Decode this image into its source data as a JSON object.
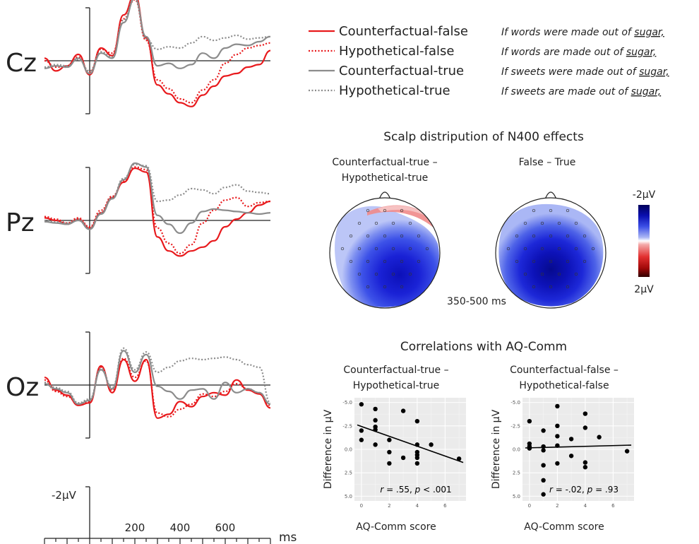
{
  "legend": [
    {
      "name": "Counterfactual-false",
      "example": "If words were made out of ",
      "keyword": "sugar,",
      "color": "#e8191c",
      "dash": "solid"
    },
    {
      "name": "Hypothetical-false",
      "example": "If words are made out of ",
      "keyword": "sugar,",
      "color": "#e8191c",
      "dash": "dotted"
    },
    {
      "name": "Counterfactual-true",
      "example": "If sweets were made out of ",
      "keyword": "sugar,",
      "color": "#8c8c8c",
      "dash": "solid"
    },
    {
      "name": "Hypothetical-true",
      "example": "If sweets are made out of ",
      "keyword": "sugar,",
      "color": "#8c8c8c",
      "dash": "dotted"
    }
  ],
  "erp": {
    "channels": [
      "Cz",
      "Pz",
      "Oz"
    ],
    "scale_label": "-2µV",
    "time_unit": "ms",
    "time_ticks": [
      "200",
      "400",
      "600"
    ]
  },
  "scalp": {
    "title": "Scalp distripution of N400 effects",
    "maps": [
      {
        "label_line1": "Counterfactual-true –",
        "label_line2": "Hypothetical-true"
      },
      {
        "label_line1": "False – True",
        "label_line2": ""
      }
    ],
    "time_window": "350-500 ms",
    "colorbar_top": "-2µV",
    "colorbar_bottom": "2µV",
    "colors": {
      "negative": "#1a1fd0",
      "positive": "#d81d1d"
    }
  },
  "correlations": {
    "title": "Correlations with AQ-Comm",
    "ylabel": "Difference in µV",
    "xlabel": "AQ-Comm score",
    "panels": [
      {
        "title_line1": "Counterfactual-true –",
        "title_line2": "Hypothetical-true",
        "stat_r": "r",
        "stat_rval": " = .55, ",
        "stat_p": "p",
        "stat_pval": " < .001"
      },
      {
        "title_line1": "Counterfactual-false –",
        "title_line2": "Hypothetical-false",
        "stat_r": "r",
        "stat_rval": " = -.02, ",
        "stat_p": "p",
        "stat_pval": " = .93"
      }
    ],
    "y_ticks": [
      "-5.0",
      "-2.5",
      "0.0",
      "2.5",
      "5.0"
    ],
    "x_ticks": [
      "0",
      "2",
      "4",
      "6"
    ]
  },
  "chart_data": [
    {
      "type": "line",
      "xlabel": "ms",
      "ylabel": "-2µV",
      "x_ticks": [
        200,
        400,
        600
      ],
      "xlim": [
        -200,
        800
      ],
      "y_axis_inverted": true,
      "note": "negative voltage plotted upward",
      "series": [
        {
          "name": "Counterfactual-false",
          "channel": "Cz",
          "x": [
            -200,
            -150,
            -100,
            -50,
            0,
            50,
            100,
            150,
            200,
            250,
            300,
            350,
            400,
            450,
            500,
            550,
            600,
            650,
            700,
            750,
            800
          ],
          "y": [
            0.2,
            -0.8,
            -0.4,
            0.5,
            -1.1,
            1.0,
            0.4,
            3.6,
            5.2,
            1.8,
            -1.9,
            -2.6,
            -3.3,
            -3.6,
            -2.7,
            -2.0,
            -1.2,
            -1.0,
            -0.5,
            -0.3,
            0.8
          ]
        },
        {
          "name": "Hypothetical-false",
          "channel": "Cz",
          "x": [
            -200,
            -150,
            -100,
            -50,
            0,
            50,
            100,
            150,
            200,
            250,
            300,
            350,
            400,
            450,
            500,
            550,
            600,
            650,
            700,
            750,
            800
          ],
          "y": [
            0.0,
            -0.5,
            -0.5,
            0.3,
            -0.9,
            0.9,
            0.6,
            3.3,
            4.8,
            1.6,
            -1.5,
            -2.2,
            -3.0,
            -3.3,
            -2.3,
            -1.5,
            -0.2,
            0.5,
            1.0,
            1.2,
            1.4
          ]
        },
        {
          "name": "Counterfactual-true",
          "channel": "Cz",
          "x": [
            -200,
            -150,
            -100,
            -50,
            0,
            50,
            100,
            150,
            200,
            250,
            300,
            350,
            400,
            450,
            500,
            550,
            600,
            650,
            700,
            750,
            800
          ],
          "y": [
            -0.6,
            -0.4,
            -0.5,
            0.2,
            -1.0,
            0.6,
            0.2,
            3.0,
            4.9,
            1.9,
            -0.4,
            -0.2,
            -0.6,
            -0.3,
            0.6,
            0.2,
            1.0,
            1.3,
            1.2,
            1.5,
            1.9
          ]
        },
        {
          "name": "Hypothetical-true",
          "channel": "Cz",
          "x": [
            -200,
            -150,
            -100,
            -50,
            0,
            50,
            100,
            150,
            200,
            250,
            300,
            350,
            400,
            450,
            500,
            550,
            600,
            650,
            700,
            750,
            800
          ],
          "y": [
            -0.5,
            -0.3,
            -0.4,
            0.1,
            -0.8,
            0.7,
            0.3,
            3.2,
            5.0,
            1.7,
            0.9,
            1.1,
            1.0,
            1.4,
            1.9,
            1.6,
            1.8,
            2.0,
            1.7,
            1.8,
            1.9
          ]
        },
        {
          "name": "Counterfactual-false",
          "channel": "Pz",
          "x": [
            -200,
            -150,
            -100,
            -50,
            0,
            50,
            100,
            150,
            200,
            250,
            300,
            350,
            400,
            450,
            500,
            550,
            600,
            650,
            700,
            750,
            800
          ],
          "y": [
            0.2,
            0.0,
            -0.3,
            0.1,
            -0.6,
            0.6,
            1.8,
            3.0,
            4.1,
            3.8,
            -1.3,
            -2.4,
            -2.8,
            -2.4,
            -2.1,
            -1.6,
            -0.5,
            0.1,
            0.6,
            1.2,
            1.5
          ]
        },
        {
          "name": "Hypothetical-false",
          "channel": "Pz",
          "x": [
            -200,
            -150,
            -100,
            -50,
            0,
            50,
            100,
            150,
            200,
            250,
            300,
            350,
            400,
            450,
            500,
            550,
            600,
            650,
            700,
            750,
            800
          ],
          "y": [
            0.3,
            0.1,
            -0.2,
            0.2,
            -0.5,
            0.8,
            1.9,
            3.1,
            4.2,
            4.0,
            -0.6,
            -1.8,
            -2.6,
            -1.9,
            -0.2,
            0.8,
            1.6,
            1.8,
            1.1,
            1.4,
            1.5
          ]
        },
        {
          "name": "Counterfactual-true",
          "channel": "Pz",
          "x": [
            -200,
            -150,
            -100,
            -50,
            0,
            50,
            100,
            150,
            200,
            250,
            300,
            350,
            400,
            450,
            500,
            550,
            600,
            650,
            700,
            750,
            800
          ],
          "y": [
            -0.1,
            -0.2,
            -0.3,
            0.0,
            -0.7,
            0.5,
            1.7,
            3.2,
            4.5,
            4.2,
            0.4,
            -0.3,
            -1.0,
            -0.2,
            0.7,
            0.9,
            0.8,
            0.7,
            0.6,
            0.5,
            0.6
          ]
        },
        {
          "name": "Hypothetical-true",
          "channel": "Pz",
          "x": [
            -200,
            -150,
            -100,
            -50,
            0,
            50,
            100,
            150,
            200,
            250,
            300,
            350,
            400,
            450,
            500,
            550,
            600,
            650,
            700,
            750,
            800
          ],
          "y": [
            0.0,
            -0.1,
            -0.2,
            0.1,
            -0.6,
            0.6,
            1.8,
            3.3,
            4.4,
            4.3,
            1.5,
            1.6,
            2.0,
            2.5,
            2.4,
            2.1,
            2.6,
            2.8,
            2.3,
            2.2,
            2.1
          ]
        },
        {
          "name": "Counterfactual-false",
          "channel": "Oz",
          "x": [
            -200,
            -150,
            -100,
            -50,
            0,
            50,
            100,
            150,
            200,
            250,
            300,
            350,
            400,
            450,
            500,
            550,
            600,
            650,
            700,
            750,
            800
          ],
          "y": [
            0.6,
            -0.4,
            -0.8,
            -1.6,
            -1.4,
            1.5,
            -0.6,
            2.0,
            0.3,
            2.0,
            -2.6,
            -2.3,
            -1.3,
            -1.7,
            -0.9,
            -0.6,
            -0.8,
            0.4,
            -0.4,
            -0.7,
            -1.8
          ]
        },
        {
          "name": "Hypothetical-false",
          "channel": "Oz",
          "x": [
            -200,
            -150,
            -100,
            -50,
            0,
            50,
            100,
            150,
            200,
            250,
            300,
            350,
            400,
            450,
            500,
            550,
            600,
            650,
            700,
            750,
            800
          ],
          "y": [
            0.4,
            -0.5,
            -0.9,
            -1.5,
            -1.3,
            1.4,
            -0.4,
            2.1,
            0.6,
            1.9,
            -2.2,
            -2.5,
            -1.9,
            -1.5,
            -0.7,
            -0.9,
            -0.5,
            0.1,
            -0.3,
            -0.6,
            -1.6
          ]
        },
        {
          "name": "Counterfactual-true",
          "channel": "Oz",
          "x": [
            -200,
            -150,
            -100,
            -50,
            0,
            50,
            100,
            150,
            200,
            250,
            300,
            350,
            400,
            450,
            500,
            550,
            600,
            650,
            700,
            750,
            800
          ],
          "y": [
            0.1,
            -0.3,
            -0.6,
            -1.5,
            -1.2,
            1.2,
            -0.3,
            2.7,
            1.0,
            2.4,
            -0.1,
            -0.5,
            -1.1,
            -0.4,
            -0.3,
            -1.1,
            0.2,
            -0.6,
            -0.3,
            -0.6,
            -1.5
          ]
        },
        {
          "name": "Hypothetical-true",
          "channel": "Oz",
          "x": [
            -200,
            -150,
            -100,
            -50,
            0,
            50,
            100,
            150,
            200,
            250,
            300,
            350,
            400,
            450,
            500,
            550,
            600,
            650,
            700,
            750,
            800
          ],
          "y": [
            0.2,
            -0.2,
            -0.5,
            -1.4,
            -1.1,
            1.3,
            -0.2,
            2.9,
            1.2,
            2.6,
            1.0,
            1.4,
            1.9,
            2.1,
            2.0,
            2.1,
            2.2,
            2.0,
            1.6,
            1.4,
            -1.4
          ]
        }
      ]
    },
    {
      "type": "scatter",
      "title": "Counterfactual-true – Hypothetical-true",
      "xlabel": "AQ-Comm score",
      "ylabel": "Difference in µV",
      "xlim": [
        -0.5,
        7.5
      ],
      "ylim": [
        -5.5,
        5.5
      ],
      "y_axis_inverted": true,
      "x": [
        0,
        0,
        0,
        1,
        1,
        1,
        1,
        1,
        2,
        2,
        2,
        3,
        3,
        4,
        4,
        4,
        4,
        4,
        4,
        5,
        7
      ],
      "y": [
        -4.8,
        -2.0,
        -1.0,
        -4.3,
        -3.1,
        -2.4,
        -2.1,
        -0.5,
        -1.0,
        0.3,
        1.5,
        -4.1,
        0.9,
        -3.0,
        -0.5,
        0.3,
        0.9,
        0.6,
        1.5,
        -0.5,
        1.0
      ],
      "fit": {
        "x": [
          -0.3,
          7.3
        ],
        "y": [
          -2.6,
          1.4
        ]
      },
      "annotation": "r = .55, p < .001"
    },
    {
      "type": "scatter",
      "title": "Counterfactual-false – Hypothetical-false",
      "xlabel": "AQ-Comm score",
      "ylabel": "Difference in µV",
      "xlim": [
        -0.5,
        7.5
      ],
      "ylim": [
        -5.5,
        5.5
      ],
      "y_axis_inverted": true,
      "x": [
        0,
        0,
        0,
        0,
        1,
        1,
        1,
        1,
        1,
        1,
        2,
        2,
        2,
        2,
        2,
        3,
        3,
        4,
        4,
        4,
        4,
        5,
        7
      ],
      "y": [
        -3.0,
        -0.6,
        -0.3,
        -0.1,
        -2.0,
        -0.3,
        0.1,
        1.7,
        3.3,
        4.8,
        -4.6,
        -2.5,
        -1.4,
        -0.4,
        1.5,
        0.7,
        -1.1,
        -3.8,
        -2.3,
        1.4,
        1.9,
        -1.3,
        0.2
      ],
      "fit": {
        "x": [
          -0.3,
          7.3
        ],
        "y": [
          -0.15,
          -0.45
        ]
      },
      "annotation": "r = -.02, p = .93"
    }
  ]
}
